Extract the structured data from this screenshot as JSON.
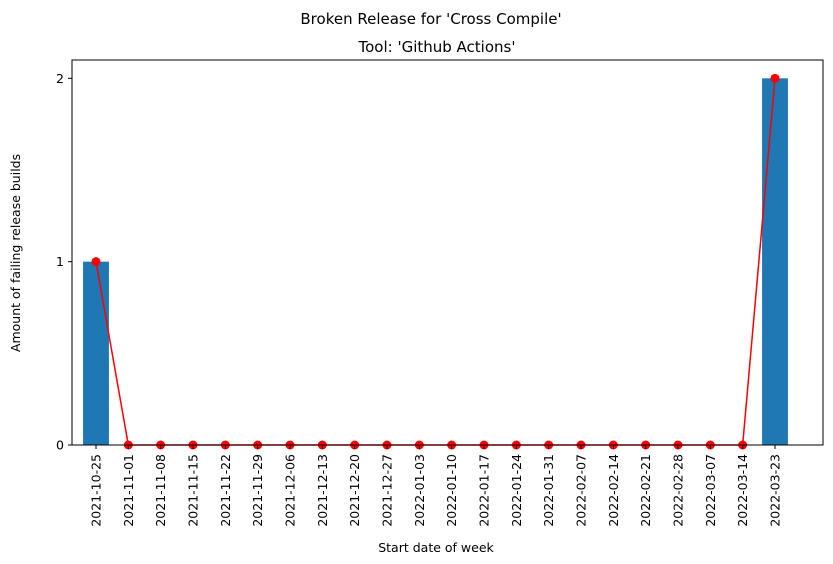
{
  "chart_data": {
    "type": "bar",
    "title": "Broken Release for 'Cross Compile'",
    "subtitle": "Tool: 'Github Actions'",
    "xlabel": "Start date of week",
    "ylabel": "Amount of failing release builds",
    "categories": [
      "2021-10-25",
      "2021-11-01",
      "2021-11-08",
      "2021-11-15",
      "2021-11-22",
      "2021-11-29",
      "2021-12-06",
      "2021-12-13",
      "2021-12-20",
      "2021-12-27",
      "2022-01-03",
      "2022-01-10",
      "2022-01-17",
      "2022-01-24",
      "2022-01-31",
      "2022-02-07",
      "2022-02-14",
      "2022-02-21",
      "2022-02-28",
      "2022-03-07",
      "2022-03-14",
      "2022-03-23"
    ],
    "values": [
      1,
      0,
      0,
      0,
      0,
      0,
      0,
      0,
      0,
      0,
      0,
      0,
      0,
      0,
      0,
      0,
      0,
      0,
      0,
      0,
      0,
      2
    ],
    "yticks": [
      0,
      1,
      2
    ],
    "ylim": [
      0,
      2.1
    ],
    "grid": false,
    "bar_color": "#1f77b4",
    "line_color": "#ff0000",
    "overlay": "line-with-markers"
  }
}
